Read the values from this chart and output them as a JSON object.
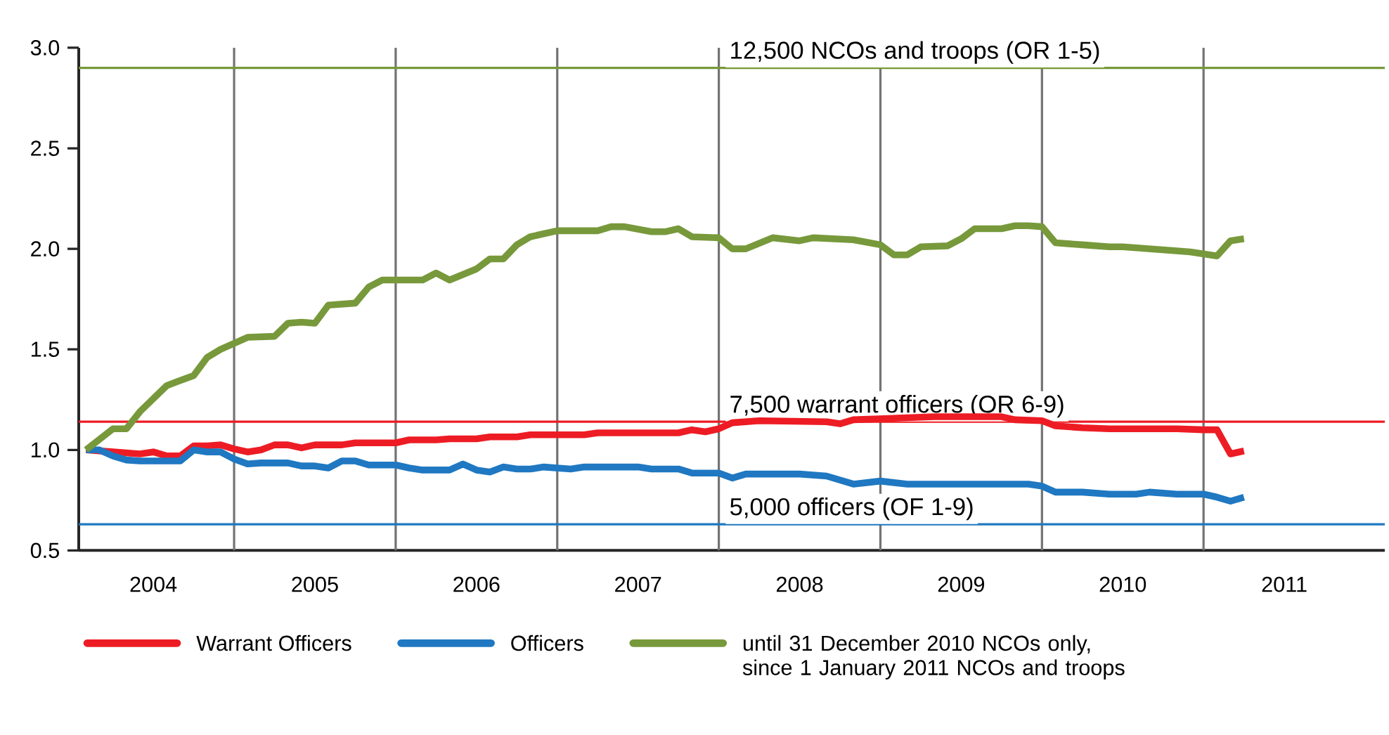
{
  "chart_data": {
    "type": "line",
    "series": [
      {
        "name": "Warrant Officers",
        "color": "#ed1c24",
        "x": [
          "2004-02",
          "2004-04",
          "2004-06",
          "2004-07",
          "2004-08",
          "2004-09",
          "2004-10",
          "2004-11",
          "2004-12",
          "2005-01",
          "2005-02",
          "2005-03",
          "2005-04",
          "2005-05",
          "2005-06",
          "2005-07",
          "2005-09",
          "2005-10",
          "2006-01",
          "2006-02",
          "2006-04",
          "2006-05",
          "2006-07",
          "2006-08",
          "2006-10",
          "2006-11",
          "2007-03",
          "2007-04",
          "2007-10",
          "2007-11",
          "2007-12",
          "2008-01",
          "2008-02",
          "2008-04",
          "2008-09",
          "2008-10",
          "2008-11",
          "2009-05",
          "2009-10",
          "2009-11",
          "2010-01",
          "2010-02",
          "2010-04",
          "2010-06",
          "2010-11",
          "2011-01",
          "2011-02",
          "2011-03",
          "2011-04"
        ],
        "values": [
          1.0,
          0.99,
          0.98,
          0.99,
          0.97,
          0.97,
          1.02,
          1.02,
          1.025,
          1.005,
          0.99,
          1.0,
          1.025,
          1.025,
          1.01,
          1.025,
          1.025,
          1.035,
          1.035,
          1.05,
          1.05,
          1.055,
          1.055,
          1.065,
          1.065,
          1.075,
          1.075,
          1.085,
          1.085,
          1.1,
          1.09,
          1.105,
          1.135,
          1.145,
          1.14,
          1.13,
          1.15,
          1.165,
          1.165,
          1.15,
          1.145,
          1.12,
          1.11,
          1.105,
          1.105,
          1.1,
          1.1,
          0.98,
          0.995
        ]
      },
      {
        "name": "Officers",
        "color": "#1f78c1",
        "x": [
          "2004-02",
          "2004-03",
          "2004-04",
          "2004-05",
          "2004-06",
          "2004-09",
          "2004-10",
          "2004-11",
          "2004-12",
          "2005-01",
          "2005-02",
          "2005-03",
          "2005-05",
          "2005-06",
          "2005-07",
          "2005-08",
          "2005-09",
          "2005-10",
          "2005-11",
          "2006-01",
          "2006-02",
          "2006-03",
          "2006-05",
          "2006-06",
          "2006-07",
          "2006-08",
          "2006-09",
          "2006-10",
          "2006-11",
          "2006-12",
          "2007-02",
          "2007-03",
          "2007-07",
          "2007-08",
          "2007-10",
          "2007-11",
          "2008-01",
          "2008-02",
          "2008-03",
          "2008-07",
          "2008-09",
          "2008-11",
          "2009-01",
          "2009-03",
          "2009-12",
          "2010-01",
          "2010-02",
          "2010-04",
          "2010-06",
          "2010-08",
          "2010-09",
          "2010-11",
          "2011-01",
          "2011-02",
          "2011-03",
          "2011-04"
        ],
        "values": [
          1.0,
          1.0,
          0.97,
          0.95,
          0.945,
          0.945,
          1.0,
          0.99,
          0.99,
          0.955,
          0.93,
          0.935,
          0.935,
          0.92,
          0.92,
          0.91,
          0.945,
          0.945,
          0.925,
          0.925,
          0.91,
          0.9,
          0.9,
          0.93,
          0.9,
          0.89,
          0.915,
          0.905,
          0.905,
          0.915,
          0.905,
          0.915,
          0.915,
          0.905,
          0.905,
          0.885,
          0.885,
          0.86,
          0.88,
          0.88,
          0.87,
          0.83,
          0.845,
          0.83,
          0.83,
          0.82,
          0.79,
          0.79,
          0.78,
          0.78,
          0.79,
          0.78,
          0.78,
          0.765,
          0.745,
          0.765
        ]
      },
      {
        "name": "until 31 December 2010 NCOs only, since 1 January 2011 NCOs and troops",
        "color": "#77993b",
        "x": [
          "2004-02",
          "2004-04",
          "2004-05",
          "2004-06",
          "2004-08",
          "2004-10",
          "2004-11",
          "2004-12",
          "2005-02",
          "2005-04",
          "2005-05",
          "2005-06",
          "2005-07",
          "2005-08",
          "2005-10",
          "2005-11",
          "2005-12",
          "2006-03",
          "2006-04",
          "2006-05",
          "2006-07",
          "2006-08",
          "2006-09",
          "2006-10",
          "2006-11",
          "2007-01",
          "2007-04",
          "2007-05",
          "2007-06",
          "2007-08",
          "2007-09",
          "2007-10",
          "2007-11",
          "2008-01",
          "2008-02",
          "2008-03",
          "2008-05",
          "2008-07",
          "2008-08",
          "2008-11",
          "2009-01",
          "2009-02",
          "2009-03",
          "2009-04",
          "2009-06",
          "2009-07",
          "2009-08",
          "2009-10",
          "2009-11",
          "2009-12",
          "2010-01",
          "2010-02",
          "2010-04",
          "2010-06",
          "2010-07",
          "2010-09",
          "2010-11",
          "2010-12",
          "2011-02",
          "2011-03",
          "2011-04"
        ],
        "values": [
          1.0,
          1.105,
          1.105,
          1.19,
          1.32,
          1.37,
          1.46,
          1.5,
          1.56,
          1.565,
          1.63,
          1.635,
          1.63,
          1.72,
          1.73,
          1.81,
          1.845,
          1.845,
          1.88,
          1.845,
          1.9,
          1.95,
          1.95,
          2.02,
          2.06,
          2.09,
          2.09,
          2.11,
          2.11,
          2.085,
          2.085,
          2.1,
          2.06,
          2.055,
          2.0,
          2.0,
          2.055,
          2.04,
          2.055,
          2.045,
          2.02,
          1.97,
          1.97,
          2.01,
          2.015,
          2.05,
          2.1,
          2.1,
          2.115,
          2.115,
          2.11,
          2.03,
          2.02,
          2.01,
          2.01,
          2.0,
          1.99,
          1.985,
          1.965,
          2.04,
          2.05
        ]
      }
    ],
    "xlim": [
      "2004-01-15",
      "2012-02-15"
    ],
    "xticks": [
      {
        "value": "2004-07",
        "label": "2004"
      },
      {
        "value": "2005-01",
        "label": null
      },
      {
        "value": "2005-07",
        "label": "2005"
      },
      {
        "value": "2006-01",
        "label": null
      },
      {
        "value": "2006-07",
        "label": "2006"
      },
      {
        "value": "2007-01",
        "label": null
      },
      {
        "value": "2007-07",
        "label": "2007"
      },
      {
        "value": "2008-01",
        "label": null
      },
      {
        "value": "2008-07",
        "label": "2008"
      },
      {
        "value": "2009-01",
        "label": null
      },
      {
        "value": "2009-07",
        "label": "2009"
      },
      {
        "value": "2010-01",
        "label": null
      },
      {
        "value": "2010-07",
        "label": "2010"
      },
      {
        "value": "2011-01",
        "label": null
      },
      {
        "value": "2011-07",
        "label": "2011"
      }
    ],
    "ylim": [
      0.5,
      3.0
    ],
    "yticks": [
      0.5,
      {
        "value": 1.0,
        "label": "1.0"
      },
      1.5,
      {
        "value": 2.0,
        "label": "2.0"
      },
      2.5,
      {
        "value": 3.0,
        "label": "3.0"
      }
    ],
    "ref_lines": [
      {
        "axis": "y",
        "value": 2.9,
        "label": "12,500 NCOs and troops (OR 1-5)",
        "color": "#77993b"
      },
      {
        "axis": "y",
        "value": 1.14,
        "label": "7,500 warrant officers (OR 6-9)",
        "color": "#ed1c24"
      },
      {
        "axis": "y",
        "value": 0.63,
        "label": "5,000 officers (OF 1-9)",
        "color": "#1f78c1"
      }
    ],
    "grid": "x",
    "legend": "bottom",
    "marker": "none",
    "line_style": "solid"
  }
}
